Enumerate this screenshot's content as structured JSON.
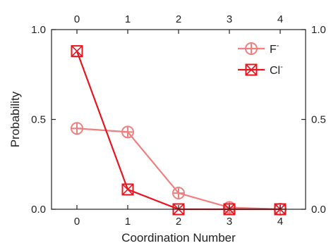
{
  "chart_data": {
    "type": "line",
    "title": "",
    "xlabel": "Coordination Number",
    "ylabel": "Probability",
    "x": [
      0,
      1,
      2,
      3,
      4
    ],
    "xticks": [
      "0",
      "1",
      "2",
      "3",
      "4"
    ],
    "yticks": [
      "0.0",
      "0.5",
      "1.0"
    ],
    "yticks_values": [
      0.0,
      0.5,
      1.0
    ],
    "xlim": [
      -0.5,
      4.5
    ],
    "ylim": [
      0.0,
      1.0
    ],
    "mirror_axes": true,
    "grid": false,
    "legend_position": "top-right",
    "series": [
      {
        "name": "F",
        "superscript": "-",
        "values": [
          0.45,
          0.43,
          0.09,
          0.01,
          0.0
        ],
        "color": "#f08080",
        "marker": "circle-plus"
      },
      {
        "name": "Cl",
        "superscript": "-",
        "values": [
          0.88,
          0.11,
          0.0,
          0.0,
          0.0
        ],
        "color": "#e8141e",
        "marker": "square-x"
      }
    ]
  }
}
